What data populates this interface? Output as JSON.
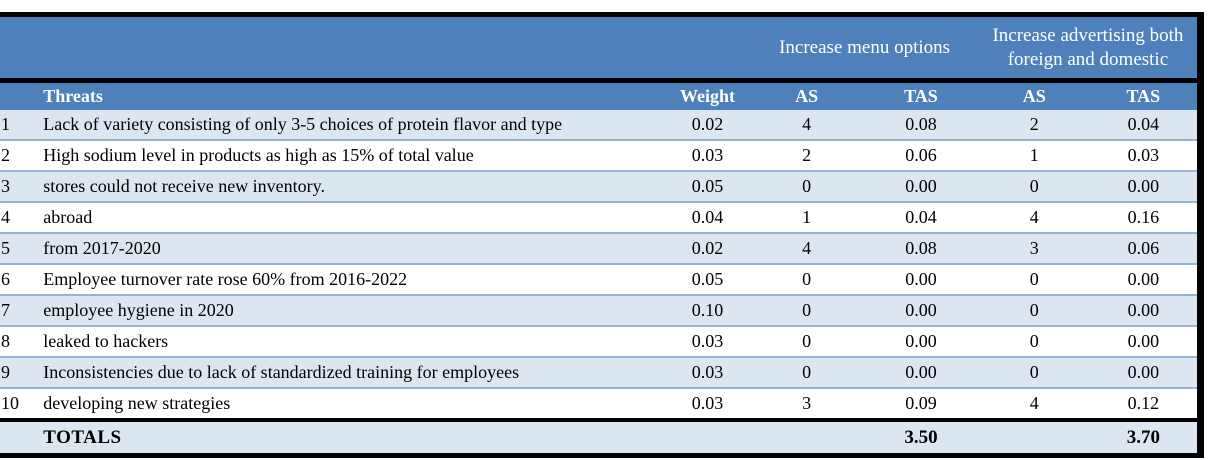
{
  "colors": {
    "header_blue": "#4E81BC",
    "row_alt_blue": "#DCE6F1",
    "row_separator_blue": "#95B3D7",
    "border_black": "#000000",
    "header_text": "#FFFFFF"
  },
  "table": {
    "strategies": [
      {
        "label": "Increase menu options"
      },
      {
        "label": "Increase advertising both foreign and domestic"
      }
    ],
    "column_headers": {
      "threats": "Threats",
      "weight": "Weight",
      "as1": "AS",
      "tas1": "TAS",
      "as2": "AS",
      "tas2": "TAS"
    },
    "rows": [
      {
        "num": "1",
        "threat": "Lack of variety consisting of only 3-5 choices of protein flavor and type",
        "weight": "0.02",
        "as1": "4",
        "tas1": "0.08",
        "as2": "2",
        "tas2": "0.04"
      },
      {
        "num": "2",
        "threat": "High sodium level in products as high as 15% of total value",
        "weight": "0.03",
        "as1": "2",
        "tas1": "0.06",
        "as2": "1",
        "tas2": "0.03"
      },
      {
        "num": "3",
        "threat": "stores could not receive new inventory.",
        "weight": "0.05",
        "as1": "0",
        "tas1": "0.00",
        "as2": "0",
        "tas2": "0.00"
      },
      {
        "num": "4",
        "threat": "abroad",
        "weight": "0.04",
        "as1": "1",
        "tas1": "0.04",
        "as2": "4",
        "tas2": "0.16"
      },
      {
        "num": "5",
        "threat": "from 2017-2020",
        "weight": "0.02",
        "as1": "4",
        "tas1": "0.08",
        "as2": "3",
        "tas2": "0.06"
      },
      {
        "num": "6",
        "threat": "Employee turnover rate rose 60% from 2016-2022",
        "weight": "0.05",
        "as1": "0",
        "tas1": "0.00",
        "as2": "0",
        "tas2": "0.00"
      },
      {
        "num": "7",
        "threat": "employee hygiene in 2020",
        "weight": "0.10",
        "as1": "0",
        "tas1": "0.00",
        "as2": "0",
        "tas2": "0.00"
      },
      {
        "num": "8",
        "threat": "leaked to hackers",
        "weight": "0.03",
        "as1": "0",
        "tas1": "0.00",
        "as2": "0",
        "tas2": "0.00"
      },
      {
        "num": "9",
        "threat": "Inconsistencies due to lack of standardized training for employees",
        "weight": "0.03",
        "as1": "0",
        "tas1": "0.00",
        "as2": "0",
        "tas2": "0.00"
      },
      {
        "num": "10",
        "threat": "developing new strategies",
        "weight": "0.03",
        "as1": "3",
        "tas1": "0.09",
        "as2": "4",
        "tas2": "0.12"
      }
    ],
    "totals": {
      "label": "TOTALS",
      "tas1": "3.50",
      "tas2": "3.70"
    }
  }
}
